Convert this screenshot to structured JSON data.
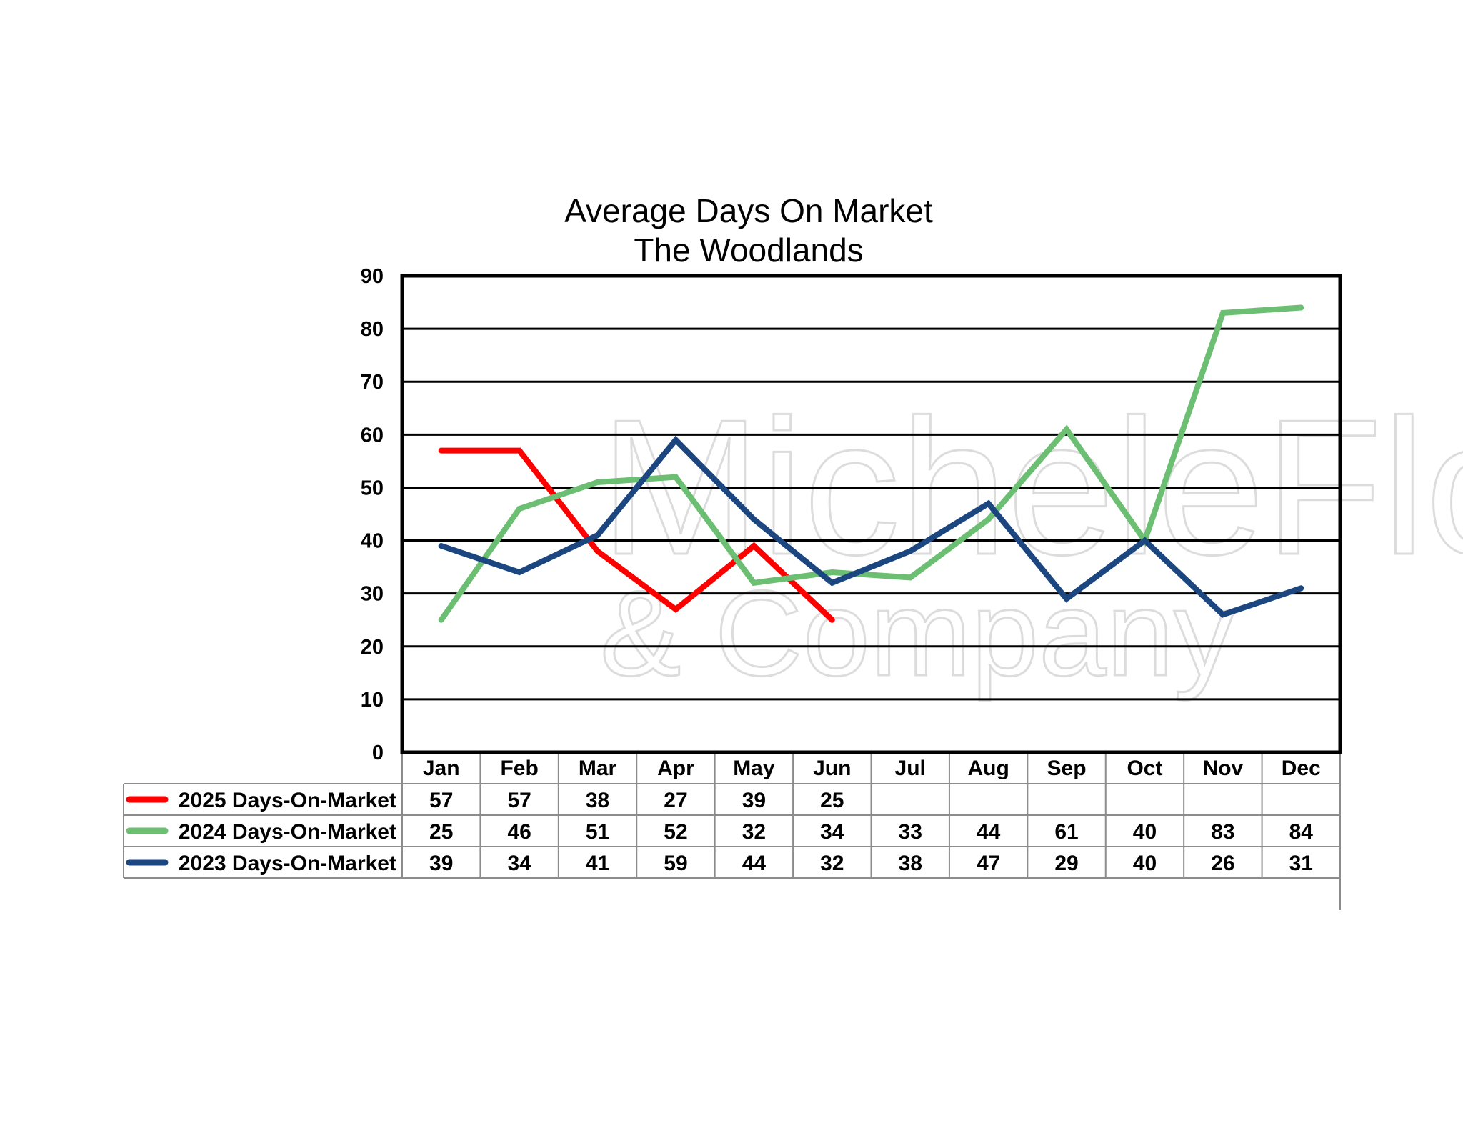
{
  "watermark": {
    "line1": "MicheleFlory",
    "line2": "& Company"
  },
  "chart_data": {
    "type": "line",
    "title": "Average Days On Market",
    "subtitle": "The Woodlands",
    "xlabel": "",
    "ylabel": "",
    "ylim": [
      0,
      90
    ],
    "yticks": [
      0,
      10,
      20,
      30,
      40,
      50,
      60,
      70,
      80,
      90
    ],
    "grid": true,
    "legend": "data-table-left",
    "categories": [
      "Jan",
      "Feb",
      "Mar",
      "Apr",
      "May",
      "Jun",
      "Jul",
      "Aug",
      "Sep",
      "Oct",
      "Nov",
      "Dec"
    ],
    "series": [
      {
        "name": "2025 Days-On-Market",
        "color": "#ff0000",
        "values": [
          57,
          57,
          38,
          27,
          39,
          25,
          null,
          null,
          null,
          null,
          null,
          null
        ]
      },
      {
        "name": "2024 Days-On-Market",
        "color": "#6cbf72",
        "values": [
          25,
          46,
          51,
          52,
          32,
          34,
          33,
          44,
          61,
          40,
          83,
          84
        ]
      },
      {
        "name": "2023 Days-On-Market",
        "color": "#1c4680",
        "values": [
          39,
          34,
          41,
          59,
          44,
          32,
          38,
          47,
          29,
          40,
          26,
          31
        ]
      }
    ]
  }
}
